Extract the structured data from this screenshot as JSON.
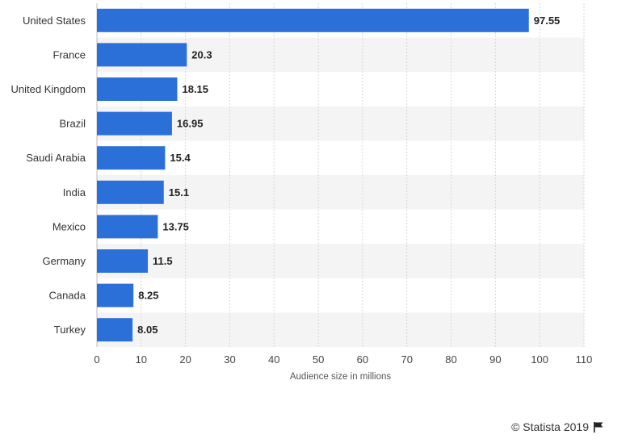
{
  "chart_data": {
    "type": "bar",
    "orientation": "horizontal",
    "categories": [
      "United States",
      "France",
      "United Kingdom",
      "Brazil",
      "Saudi Arabia",
      "India",
      "Mexico",
      "Germany",
      "Canada",
      "Turkey"
    ],
    "values": [
      97.55,
      20.3,
      18.15,
      16.95,
      15.4,
      15.1,
      13.75,
      11.5,
      8.25,
      8.05
    ],
    "value_labels": [
      "97.55",
      "20.3",
      "18.15",
      "16.95",
      "15.4",
      "15.1",
      "13.75",
      "11.5",
      "8.25",
      "8.05"
    ],
    "xticks": [
      0,
      10,
      20,
      30,
      40,
      50,
      60,
      70,
      80,
      90,
      100,
      110
    ],
    "xlim": [
      0,
      110
    ],
    "xlabel": "Audience size in millions",
    "ylabel": "",
    "title": "",
    "grid": true,
    "colors": {
      "bar": "#2b6fd9",
      "alt_row": "#f4f4f4",
      "grid": "#d6d6d6"
    }
  },
  "credit": {
    "text": "© Statista 2019",
    "icon": "flag-icon"
  }
}
